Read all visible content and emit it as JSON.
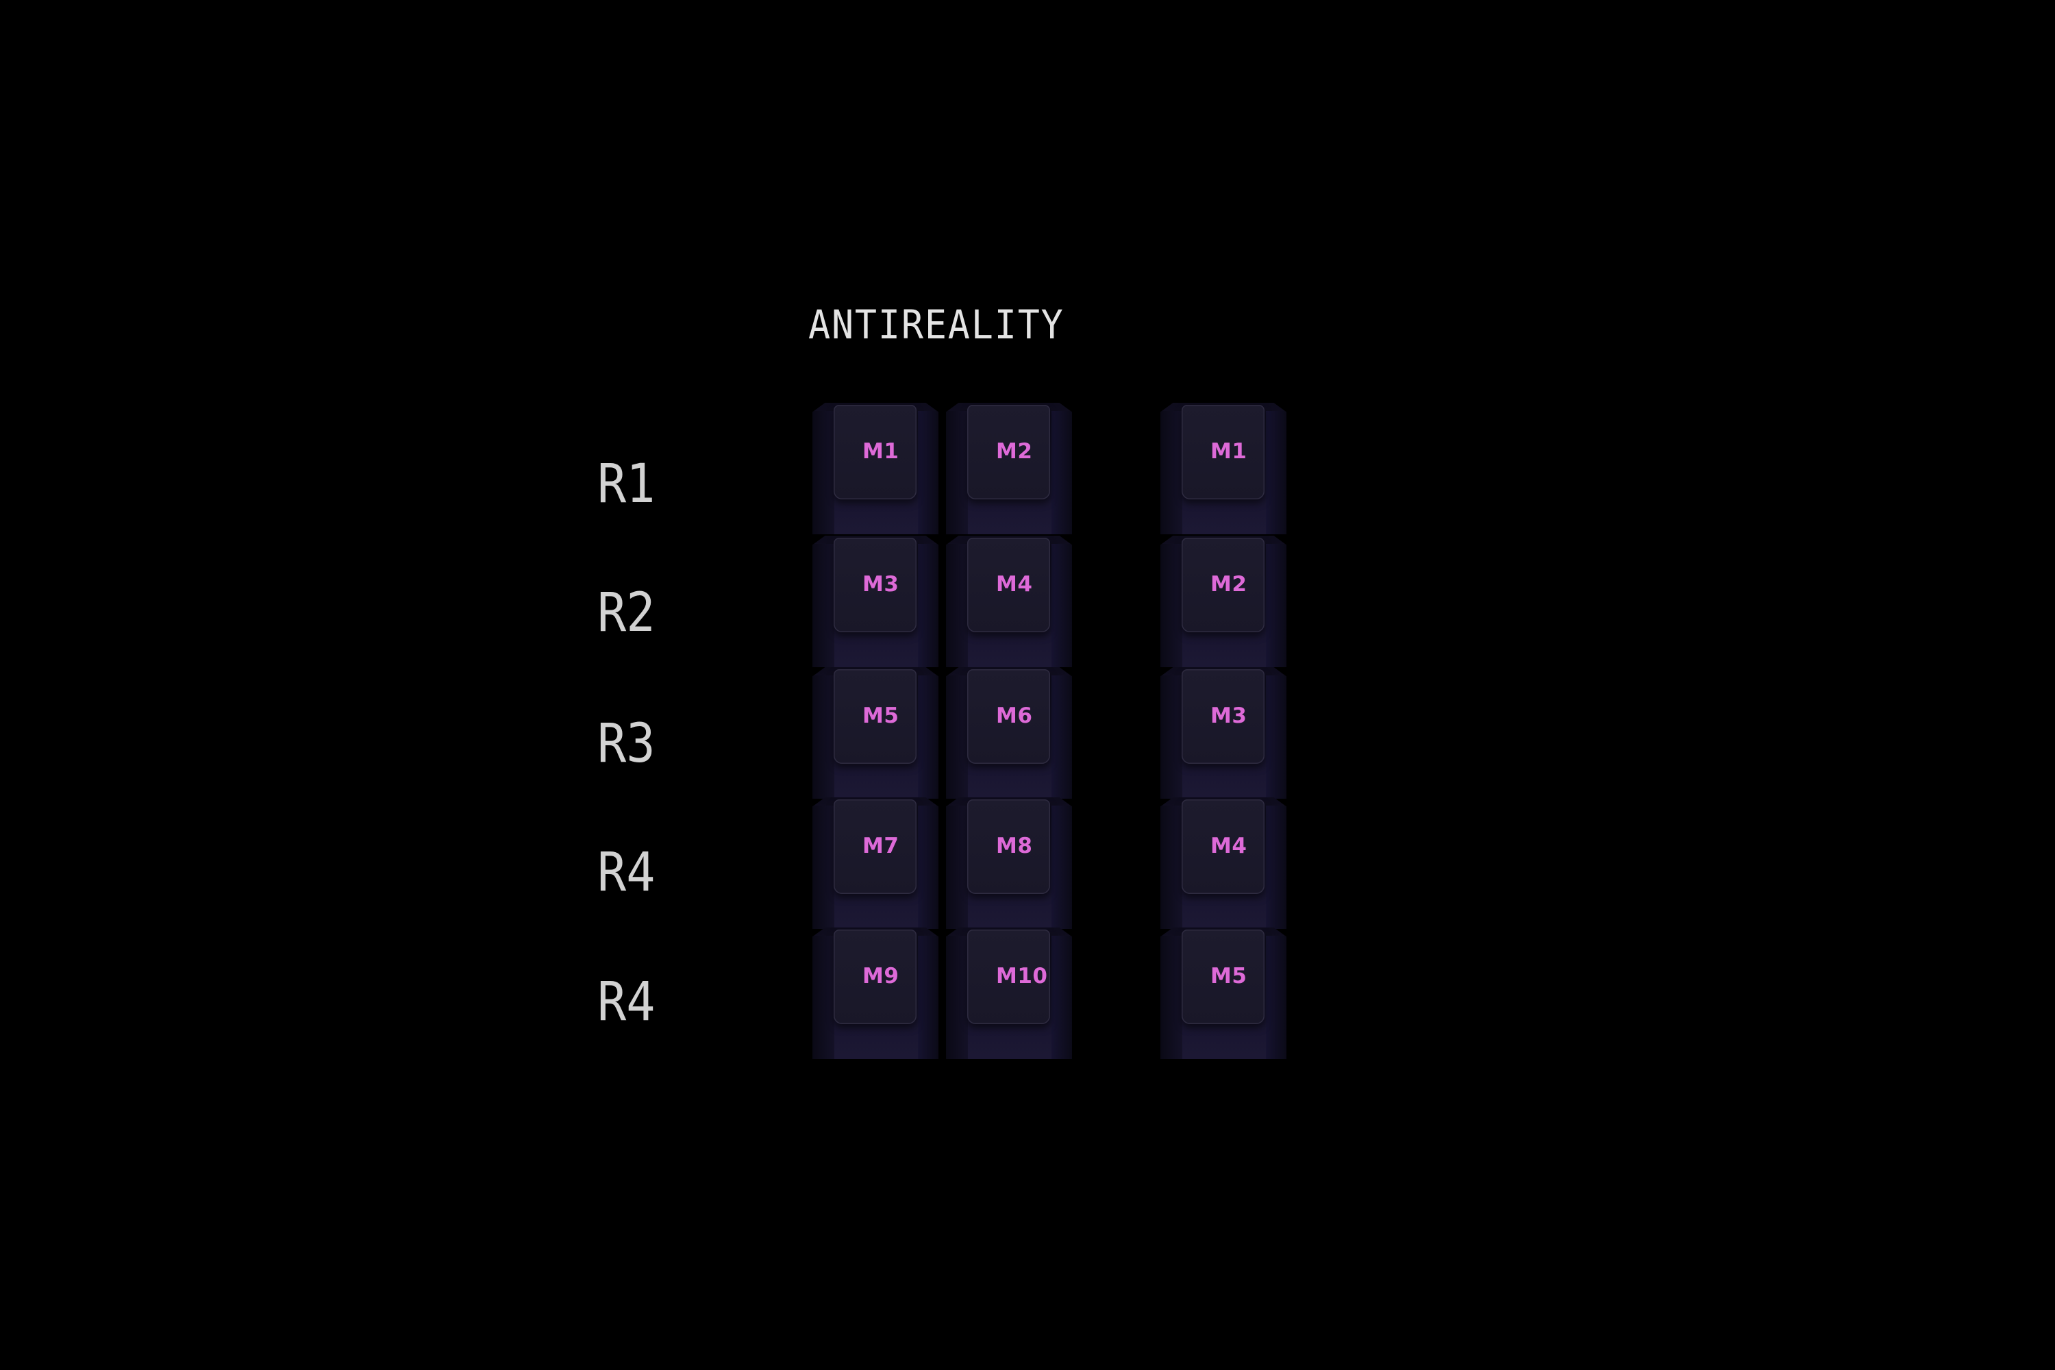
{
  "title": "ANTIREALITY",
  "row_labels": [
    "R1",
    "R2",
    "R3",
    "R4",
    "R4"
  ],
  "columns": [
    {
      "keys": [
        "M1",
        "M3",
        "M5",
        "M7",
        "M9"
      ]
    },
    {
      "keys": [
        "M2",
        "M4",
        "M6",
        "M8",
        "M10"
      ]
    },
    {
      "keys": [
        "M1",
        "M2",
        "M3",
        "M4",
        "M5"
      ]
    }
  ],
  "colors": {
    "background": "#000000",
    "keycap": "#15122a",
    "legend": "#de6ad8",
    "text": "#e4e4e4"
  }
}
